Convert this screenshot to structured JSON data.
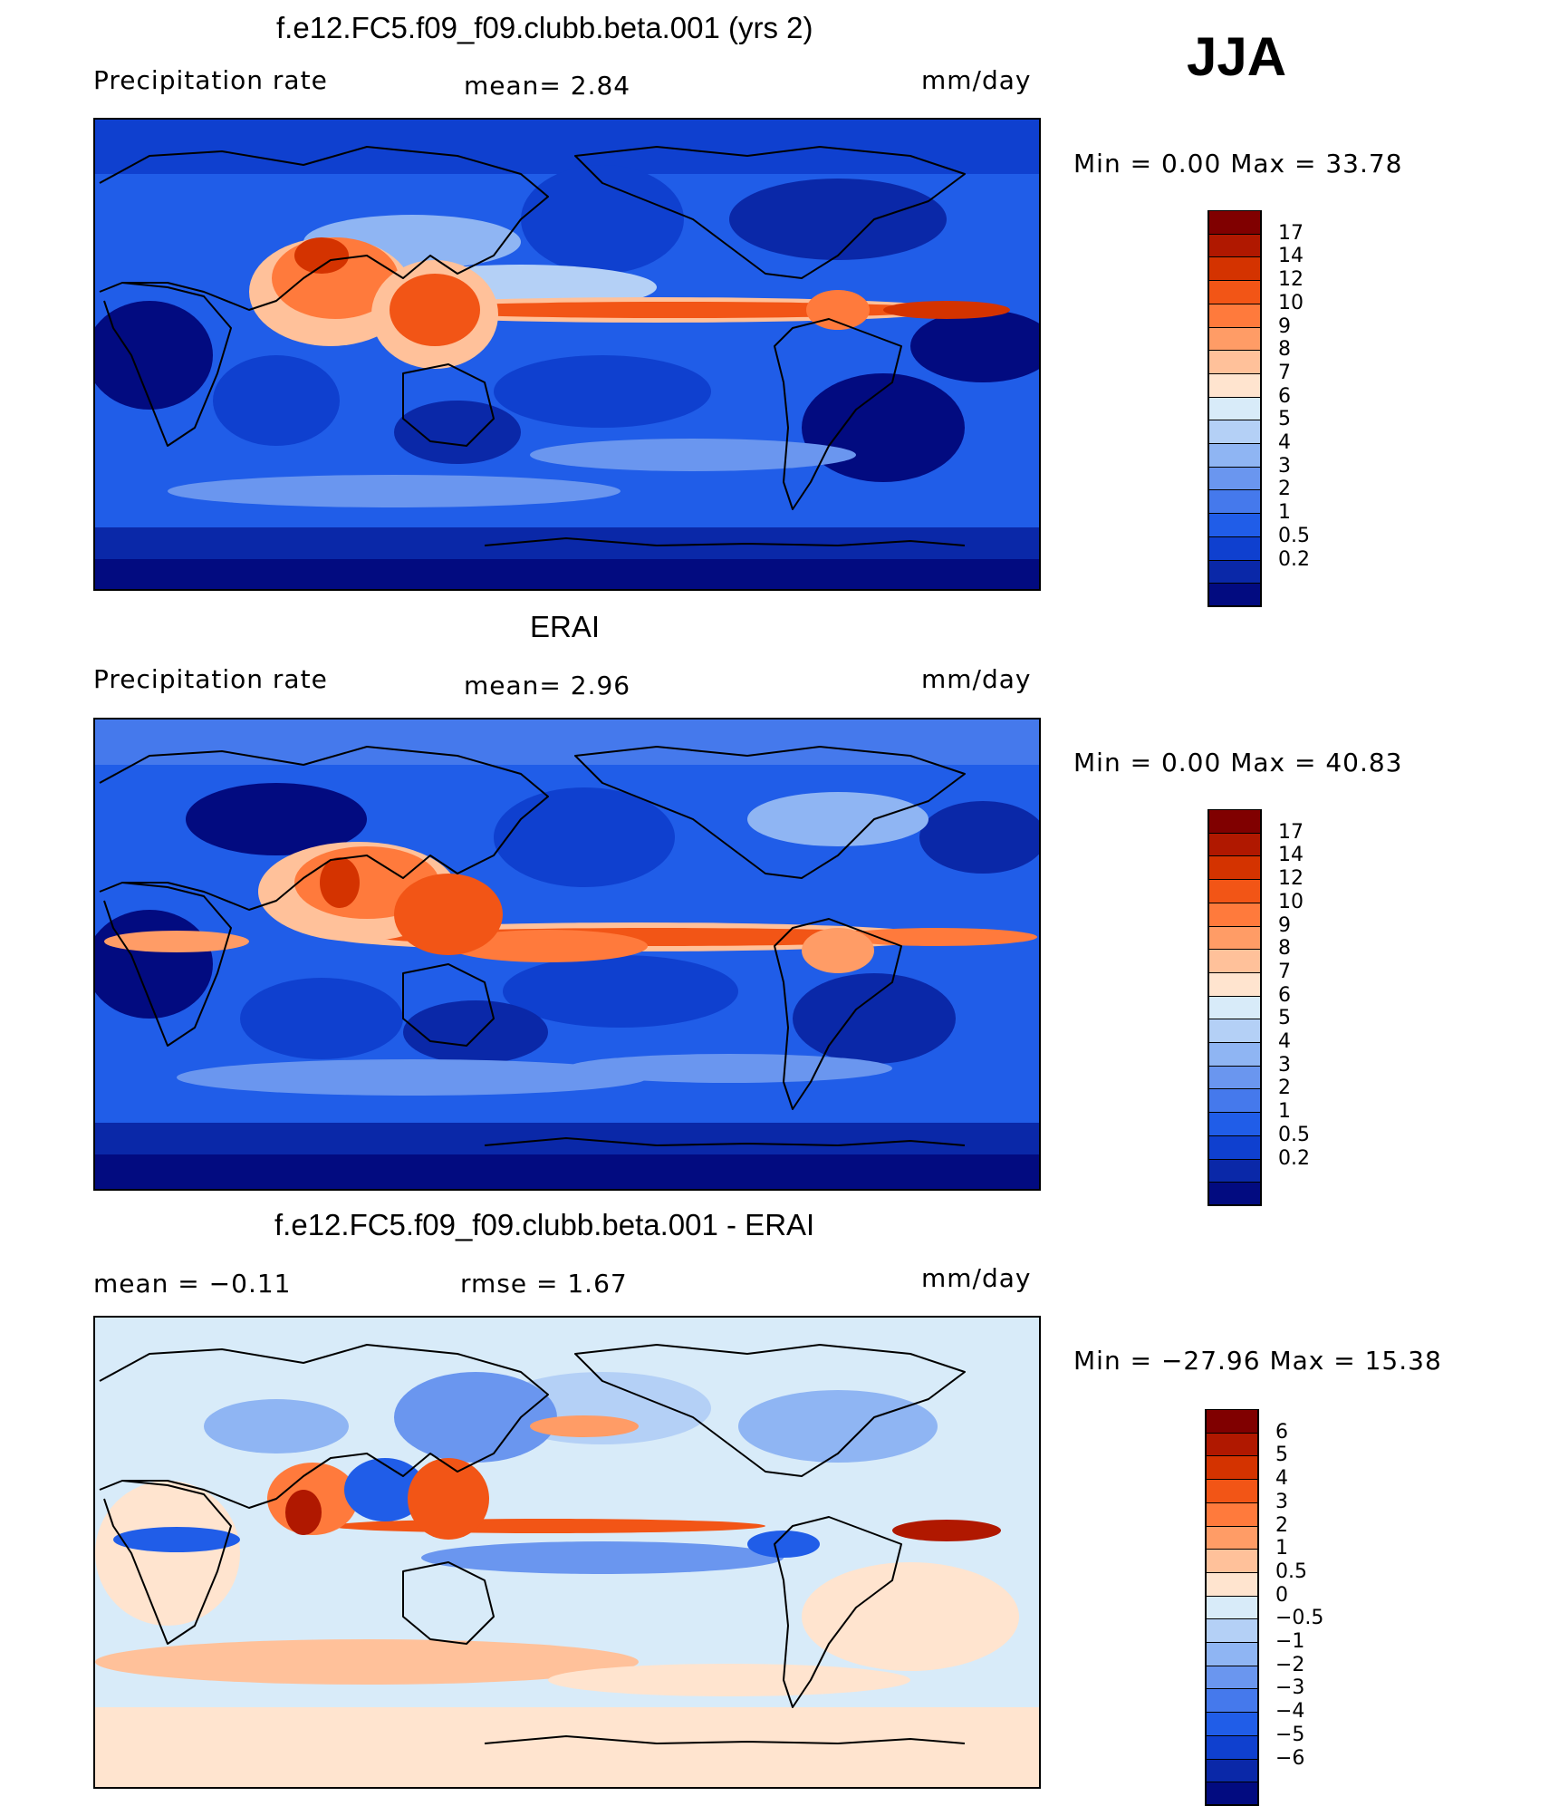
{
  "season": "JJA",
  "panels": [
    {
      "id": "model",
      "title": "f.e12.FC5.f09_f09.clubb.beta.001 (yrs 2)",
      "left_label": "Precipitation rate",
      "center_label": "mean=   2.84",
      "units": "mm/day",
      "minmax": "Min =    0.00 Max =   33.78",
      "colorbar": {
        "type": "absolute",
        "colors": [
          "#800000",
          "#b01800",
          "#d43300",
          "#f25516",
          "#ff7a3c",
          "#ff9c66",
          "#ffc19a",
          "#ffe4cf",
          "#d8ebf9",
          "#b4d0f6",
          "#8fb5f3",
          "#6a96ef",
          "#4579ec",
          "#205de8",
          "#0f40cf",
          "#0a28a8",
          "#020b80"
        ],
        "ticks": [
          "17",
          "14",
          "12",
          "10",
          "9",
          "8",
          "7",
          "6",
          "5",
          "4",
          "3",
          "2",
          "1",
          "0.5",
          "0.2"
        ]
      }
    },
    {
      "id": "obs",
      "title": "ERAI",
      "left_label": "Precipitation rate",
      "center_label": "mean=   2.96",
      "units": "mm/day",
      "minmax": "Min =    0.00 Max =   40.83",
      "colorbar": {
        "type": "absolute",
        "colors": [
          "#800000",
          "#b01800",
          "#d43300",
          "#f25516",
          "#ff7a3c",
          "#ff9c66",
          "#ffc19a",
          "#ffe4cf",
          "#d8ebf9",
          "#b4d0f6",
          "#8fb5f3",
          "#6a96ef",
          "#4579ec",
          "#205de8",
          "#0f40cf",
          "#0a28a8",
          "#020b80"
        ],
        "ticks": [
          "17",
          "14",
          "12",
          "10",
          "9",
          "8",
          "7",
          "6",
          "5",
          "4",
          "3",
          "2",
          "1",
          "0.5",
          "0.2"
        ]
      }
    },
    {
      "id": "diff",
      "title": "f.e12.FC5.f09_f09.clubb.beta.001 - ERAI",
      "left_label": "mean =   −0.11",
      "center_label": "rmse =    1.67",
      "units": "mm/day",
      "minmax": "Min = −27.96 Max =   15.38",
      "colorbar": {
        "type": "difference",
        "colors": [
          "#800000",
          "#b01800",
          "#d43300",
          "#f25516",
          "#ff7a3c",
          "#ff9c66",
          "#ffc19a",
          "#ffe4cf",
          "#d8ebf9",
          "#b4d0f6",
          "#8fb5f3",
          "#6a96ef",
          "#4579ec",
          "#205de8",
          "#0f40cf",
          "#0a28a8",
          "#020b80"
        ],
        "ticks": [
          "6",
          "5",
          "4",
          "3",
          "2",
          "1",
          "0.5",
          "0",
          "−0.5",
          "−1",
          "−2",
          "−3",
          "−4",
          "−5",
          "−6"
        ]
      }
    }
  ],
  "colors": {
    "land_outline": "#000000",
    "frame": "#000000"
  }
}
